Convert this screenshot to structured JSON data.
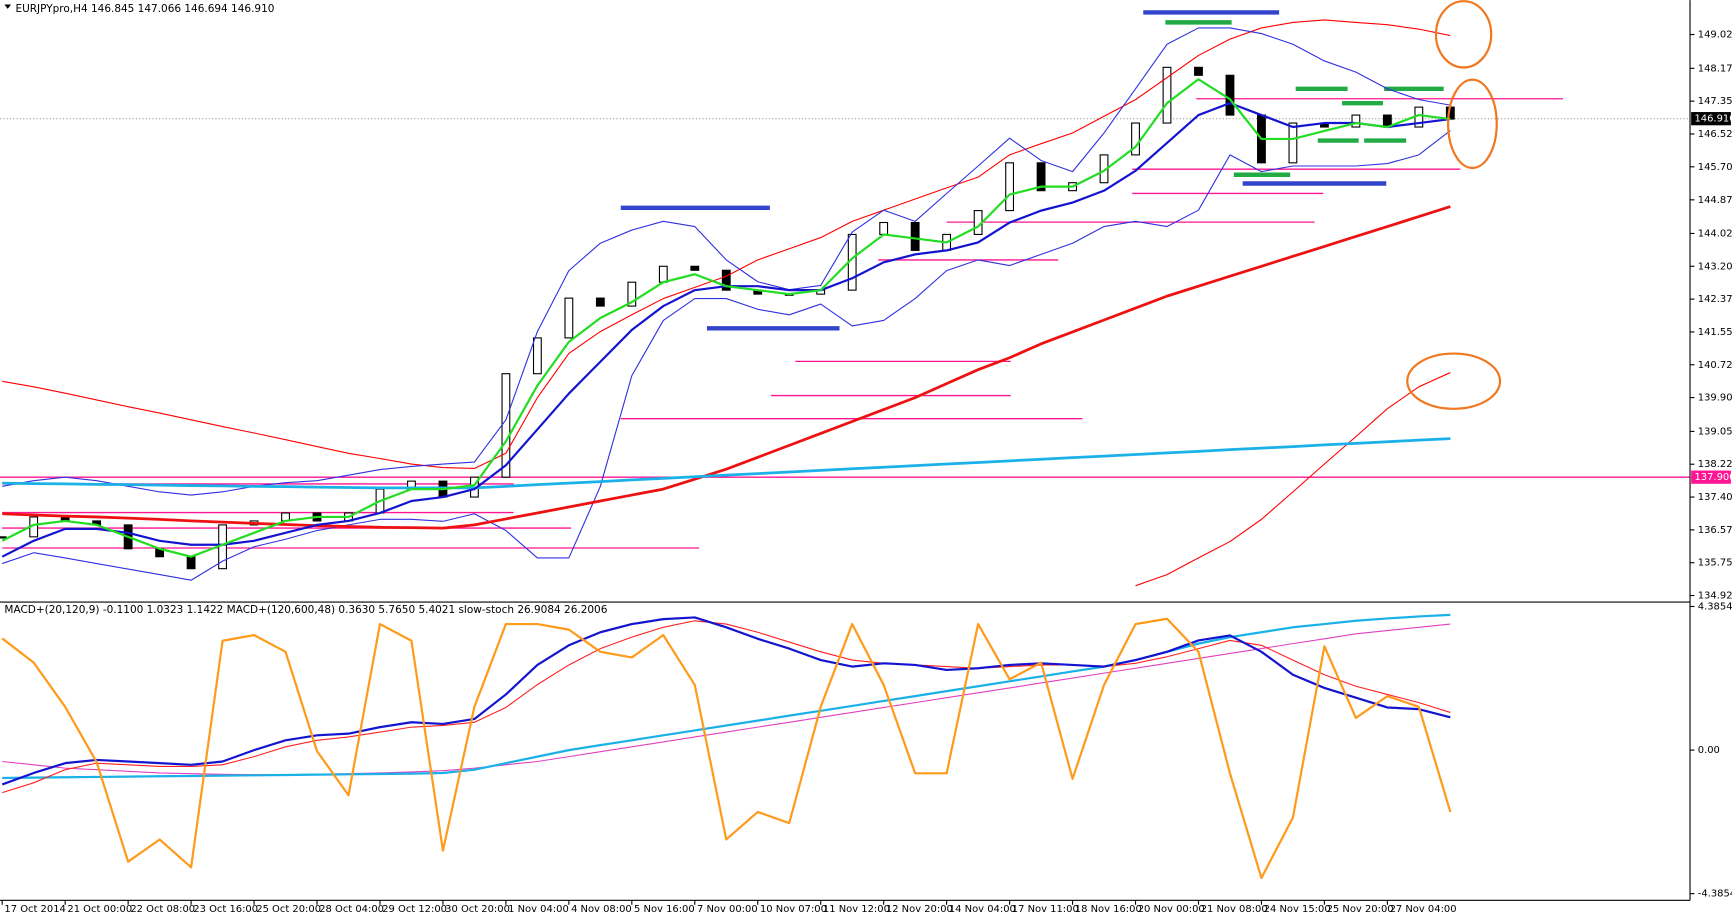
{
  "chart_data": [
    {
      "type": "candlestick",
      "header": "EURJPYpro,H4  146.845 147.066 146.694 146.910",
      "ylim": [
        134.76,
        149.89
      ],
      "yticks": [
        149.025,
        148.175,
        {
          "value": 147.35,
          "label": "147.350"
        },
        146.525,
        {
          "value": 145.7,
          "label": "145.700"
        },
        {
          "value": 144.87,
          "label": "144.870"
        },
        144.025,
        {
          "value": 143.2,
          "label": "143.200"
        },
        142.375,
        {
          "value": 141.55,
          "label": "141.550"
        },
        140.725,
        {
          "value": 139.9,
          "label": "139.900"
        },
        {
          "value": 139.05,
          "label": "139.050"
        },
        138.225,
        {
          "value": 137.4,
          "label": "137.400"
        },
        136.575,
        {
          "value": 135.75,
          "label": "135.750"
        },
        134.925
      ],
      "last_price": {
        "value": 146.91,
        "label": "146.910"
      },
      "level_label": {
        "value": 137.9,
        "label": "137.900"
      },
      "categories": [
        "17 Oct 2014",
        null,
        "21 Oct 00:00",
        null,
        "22 Oct 08:00",
        null,
        "23 Oct 16:00",
        null,
        "25 Oct 20:00",
        null,
        "28 Oct 04:00",
        null,
        "29 Oct 12:00",
        null,
        "30 Oct 20:00",
        null,
        "1 Nov 04:00",
        null,
        "4 Nov 08:00",
        null,
        "5 Nov 16:00",
        null,
        "7 Nov 00:00",
        null,
        "10 Nov 07:00",
        null,
        "11 Nov 12:00",
        null,
        "12 Nov 20:00",
        null,
        "14 Nov 04:00",
        null,
        "17 Nov 11:00",
        null,
        "18 Nov 16:00",
        null,
        "20 Nov 00:00",
        null,
        "21 Nov 08:00",
        null,
        "24 Nov 15:00",
        null,
        "25 Nov 20:00",
        null,
        "27 Nov 04:00",
        null,
        null
      ],
      "close": [
        136.4,
        136.9,
        136.8,
        136.7,
        136.1,
        135.9,
        135.6,
        136.7,
        136.8,
        137.0,
        136.8,
        137.0,
        137.6,
        137.8,
        137.4,
        137.9,
        140.5,
        141.4,
        142.4,
        142.2,
        142.8,
        143.2,
        143.1,
        142.6,
        142.5,
        142.5,
        142.6,
        144.0,
        144.3,
        143.6,
        144.0,
        144.6,
        145.8,
        145.1,
        145.3,
        146.0,
        146.8,
        148.2,
        148.0,
        147.0,
        145.8,
        146.8,
        146.7,
        147.0,
        146.7,
        147.2,
        146.9
      ],
      "series": [
        {
          "color": "#ff0000",
          "width": 1,
          "values": [
            140.31,
            140.17,
            140.01,
            139.84,
            139.67,
            139.51,
            139.34,
            139.17,
            139.01,
            138.84,
            138.67,
            138.5,
            138.37,
            138.23,
            138.14,
            138.12,
            138.5,
            139.9,
            141.01,
            141.56,
            141.98,
            142.39,
            142.67,
            142.95,
            143.36,
            143.64,
            143.92,
            144.33,
            144.61,
            144.89,
            145.17,
            145.44,
            146.0,
            146.28,
            146.55,
            146.97,
            147.39,
            147.94,
            148.5,
            148.91,
            149.19,
            149.33,
            149.39,
            149.33,
            149.27,
            149.16,
            149.0
          ]
        },
        {
          "color": "#ff0000",
          "width": 1,
          "values": [
            null,
            null,
            null,
            null,
            null,
            null,
            null,
            null,
            null,
            null,
            null,
            null,
            null,
            null,
            null,
            null,
            null,
            null,
            null,
            null,
            null,
            null,
            null,
            null,
            null,
            null,
            null,
            null,
            null,
            null,
            null,
            null,
            null,
            null,
            null,
            null,
            135.17,
            135.45,
            135.87,
            136.28,
            136.84,
            137.53,
            138.23,
            138.92,
            139.62,
            140.17,
            140.53
          ]
        },
        {
          "color": "#3030e0",
          "width": 1,
          "values": [
            137.67,
            137.81,
            137.9,
            137.81,
            137.67,
            137.53,
            137.45,
            137.53,
            137.67,
            137.76,
            137.81,
            137.95,
            138.09,
            138.17,
            138.23,
            138.28,
            139.34,
            141.56,
            143.09,
            143.78,
            144.11,
            144.33,
            144.2,
            143.36,
            142.81,
            142.61,
            142.72,
            144.06,
            144.61,
            144.33,
            145.03,
            145.72,
            146.42,
            145.86,
            145.58,
            146.55,
            147.66,
            148.78,
            149.19,
            149.19,
            149.05,
            148.78,
            148.36,
            148.08,
            147.66,
            147.39,
            147.25
          ]
        },
        {
          "color": "#3030e0",
          "width": 1,
          "values": [
            135.73,
            136.0,
            135.87,
            135.73,
            135.59,
            135.45,
            135.31,
            135.79,
            136.15,
            136.34,
            136.56,
            136.7,
            136.84,
            136.84,
            136.79,
            136.98,
            136.56,
            135.87,
            135.87,
            137.67,
            140.45,
            141.84,
            142.39,
            142.39,
            142.12,
            141.98,
            142.25,
            141.7,
            141.84,
            142.39,
            143.09,
            143.36,
            143.22,
            143.5,
            143.78,
            144.2,
            144.33,
            144.2,
            144.61,
            146.0,
            145.58,
            145.72,
            145.72,
            145.72,
            145.78,
            146.0,
            146.61
          ]
        },
        {
          "color": "#ee1111",
          "width": 2.5,
          "values": [
            136.98,
            136.95,
            136.92,
            136.9,
            136.87,
            136.84,
            136.8,
            136.77,
            136.74,
            136.71,
            136.68,
            136.66,
            136.64,
            136.63,
            136.62,
            136.7,
            136.85,
            137.0,
            137.15,
            137.3,
            137.45,
            137.6,
            137.85,
            138.1,
            138.4,
            138.7,
            139.0,
            139.3,
            139.6,
            139.9,
            140.25,
            140.6,
            140.9,
            141.25,
            141.55,
            141.85,
            142.15,
            142.45,
            142.7,
            142.95,
            143.2,
            143.45,
            143.7,
            143.95,
            144.2,
            144.45,
            144.7
          ]
        },
        {
          "color": "#1ab0e8",
          "width": 2.5,
          "values": [
            137.75,
            137.74,
            137.73,
            137.72,
            137.71,
            137.7,
            137.69,
            137.68,
            137.67,
            137.66,
            137.65,
            137.64,
            137.63,
            137.63,
            137.63,
            137.63,
            137.67,
            137.71,
            137.75,
            137.79,
            137.83,
            137.87,
            137.91,
            137.95,
            137.99,
            138.03,
            138.07,
            138.11,
            138.15,
            138.19,
            138.23,
            138.27,
            138.31,
            138.35,
            138.39,
            138.43,
            138.47,
            138.51,
            138.55,
            138.59,
            138.63,
            138.67,
            138.71,
            138.75,
            138.79,
            138.83,
            138.87
          ]
        },
        {
          "color": "#1414d0",
          "width": 2,
          "values": [
            135.9,
            136.3,
            136.6,
            136.6,
            136.5,
            136.3,
            136.2,
            136.2,
            136.3,
            136.5,
            136.7,
            136.8,
            137.0,
            137.3,
            137.4,
            137.6,
            138.2,
            139.1,
            140.0,
            140.8,
            141.6,
            142.2,
            142.6,
            142.7,
            142.7,
            142.6,
            142.6,
            142.9,
            143.3,
            143.5,
            143.6,
            143.8,
            144.3,
            144.6,
            144.8,
            145.1,
            145.6,
            146.3,
            147.0,
            147.3,
            147.0,
            146.7,
            146.8,
            146.8,
            146.7,
            146.8,
            146.9
          ]
        },
        {
          "color": "#22dd22",
          "width": 2,
          "values": [
            136.3,
            136.7,
            136.8,
            136.7,
            136.4,
            136.1,
            135.9,
            136.2,
            136.5,
            136.8,
            136.9,
            136.9,
            137.3,
            137.6,
            137.6,
            137.7,
            138.8,
            140.2,
            141.3,
            141.9,
            142.3,
            142.8,
            143.0,
            142.7,
            142.6,
            142.5,
            142.6,
            143.4,
            144.0,
            143.9,
            143.8,
            144.2,
            145.0,
            145.2,
            145.2,
            145.6,
            146.2,
            147.3,
            147.9,
            147.4,
            146.4,
            146.4,
            146.6,
            146.8,
            146.7,
            147.0,
            146.9
          ]
        }
      ],
      "levels": [
        {
          "value": 137.9,
          "color": "#ff1493"
        },
        {
          "value": 147.41,
          "color": "#ff1493"
        },
        {
          "value": 145.64,
          "color": "#ff1493"
        },
        {
          "value": 145.03,
          "color": "#ff1493"
        },
        {
          "value": 144.31,
          "color": "#ff1493"
        },
        {
          "value": 143.36,
          "color": "#ff1493"
        },
        {
          "value": 140.81,
          "color": "#ff1493"
        },
        {
          "value": 139.95,
          "color": "#ff1493"
        },
        {
          "value": 139.37,
          "color": "#ff1493"
        },
        {
          "value": 137.73,
          "color": "#ff1493"
        },
        {
          "value": 137.01,
          "color": "#ff1493"
        },
        {
          "value": 136.62,
          "color": "#ff1493"
        },
        {
          "value": 136.12,
          "color": "#ff1493"
        },
        {
          "value": 149.58,
          "color": "#3344cc"
        },
        {
          "value": 144.67,
          "color": "#3344cc"
        },
        {
          "value": 141.64,
          "color": "#3344cc"
        },
        {
          "value": 145.28,
          "color": "#3344cc"
        },
        {
          "value": 149.33,
          "color": "#22aa44"
        },
        {
          "value": 147.66,
          "color": "#22aa44"
        },
        {
          "value": 147.66,
          "color": "#22aa44"
        },
        {
          "value": 147.3,
          "color": "#22aa44"
        },
        {
          "value": 146.36,
          "color": "#22aa44"
        },
        {
          "value": 146.36,
          "color": "#22aa44"
        },
        {
          "value": 145.5,
          "color": "#22aa44"
        }
      ]
    },
    {
      "type": "line",
      "header": "MACD+(20,120,9) -0.1100 1.0323 1.1422  MACD+(120,600,48) 0.3630 5.7650 5.4021  slow-stoch 26.9084 26.2006",
      "ylim": [
        -4.59,
        4.52
      ],
      "yticks": [
        4.3854,
        {
          "value": 0,
          "label": "0.00"
        },
        -4.3854
      ],
      "series": [
        {
          "color": "#e040c0",
          "width": 1,
          "values": [
            -0.35,
            -0.45,
            -0.55,
            -0.6,
            -0.65,
            -0.7,
            -0.72,
            -0.74,
            -0.75,
            -0.75,
            -0.74,
            -0.72,
            -0.7,
            -0.67,
            -0.63,
            -0.55,
            -0.45,
            -0.35,
            -0.2,
            -0.05,
            0.1,
            0.25,
            0.4,
            0.55,
            0.7,
            0.85,
            1.0,
            1.15,
            1.3,
            1.45,
            1.6,
            1.75,
            1.9,
            2.05,
            2.2,
            2.35,
            2.5,
            2.65,
            2.8,
            2.95,
            3.1,
            3.25,
            3.4,
            3.55,
            3.65,
            3.75,
            3.85
          ]
        },
        {
          "color": "#1ab0e8",
          "width": 2,
          "values": [
            -0.85,
            -0.84,
            -0.83,
            -0.82,
            -0.81,
            -0.8,
            -0.79,
            -0.78,
            -0.77,
            -0.76,
            -0.75,
            -0.74,
            -0.73,
            -0.72,
            -0.7,
            -0.6,
            -0.4,
            -0.2,
            0.0,
            0.15,
            0.3,
            0.45,
            0.6,
            0.75,
            0.9,
            1.05,
            1.2,
            1.35,
            1.5,
            1.65,
            1.8,
            1.95,
            2.1,
            2.25,
            2.4,
            2.55,
            2.75,
            3.0,
            3.25,
            3.45,
            3.6,
            3.75,
            3.85,
            3.95,
            4.02,
            4.08,
            4.13
          ]
        },
        {
          "color": "#ff2020",
          "width": 1,
          "values": [
            -1.3,
            -1.0,
            -0.6,
            -0.4,
            -0.45,
            -0.5,
            -0.5,
            -0.45,
            -0.2,
            0.1,
            0.3,
            0.4,
            0.55,
            0.7,
            0.75,
            0.85,
            1.3,
            2.0,
            2.6,
            3.1,
            3.45,
            3.75,
            3.95,
            3.85,
            3.6,
            3.3,
            3.0,
            2.75,
            2.65,
            2.6,
            2.55,
            2.5,
            2.55,
            2.6,
            2.6,
            2.55,
            2.65,
            2.85,
            3.1,
            3.35,
            3.2,
            2.75,
            2.3,
            1.95,
            1.7,
            1.45,
            1.15
          ]
        },
        {
          "color": "#1414d0",
          "width": 2,
          "values": [
            -1.05,
            -0.7,
            -0.4,
            -0.3,
            -0.35,
            -0.4,
            -0.45,
            -0.35,
            0.0,
            0.3,
            0.45,
            0.5,
            0.7,
            0.85,
            0.8,
            0.95,
            1.7,
            2.6,
            3.2,
            3.6,
            3.85,
            4.0,
            4.05,
            3.75,
            3.4,
            3.1,
            2.75,
            2.55,
            2.65,
            2.6,
            2.45,
            2.5,
            2.6,
            2.65,
            2.6,
            2.55,
            2.75,
            3.0,
            3.35,
            3.5,
            3.0,
            2.3,
            1.9,
            1.6,
            1.3,
            1.25,
            1.0
          ]
        },
        {
          "color": "#ff9a1a",
          "width": 2,
          "values": [
            3.41,
            2.67,
            1.32,
            -0.37,
            -3.41,
            -2.73,
            -3.58,
            3.34,
            3.51,
            3.0,
            -0.03,
            -1.38,
            3.85,
            3.34,
            -3.07,
            1.32,
            3.85,
            3.85,
            3.68,
            3.0,
            2.83,
            3.51,
            1.99,
            -2.73,
            -1.89,
            -2.23,
            1.32,
            3.85,
            1.99,
            -0.71,
            -0.71,
            3.85,
            2.16,
            2.67,
            -0.88,
            1.99,
            3.85,
            4.01,
            3.0,
            -0.71,
            -3.91,
            -2.06,
            3.17,
            0.98,
            1.65,
            1.32,
            -1.89
          ]
        }
      ]
    }
  ]
}
